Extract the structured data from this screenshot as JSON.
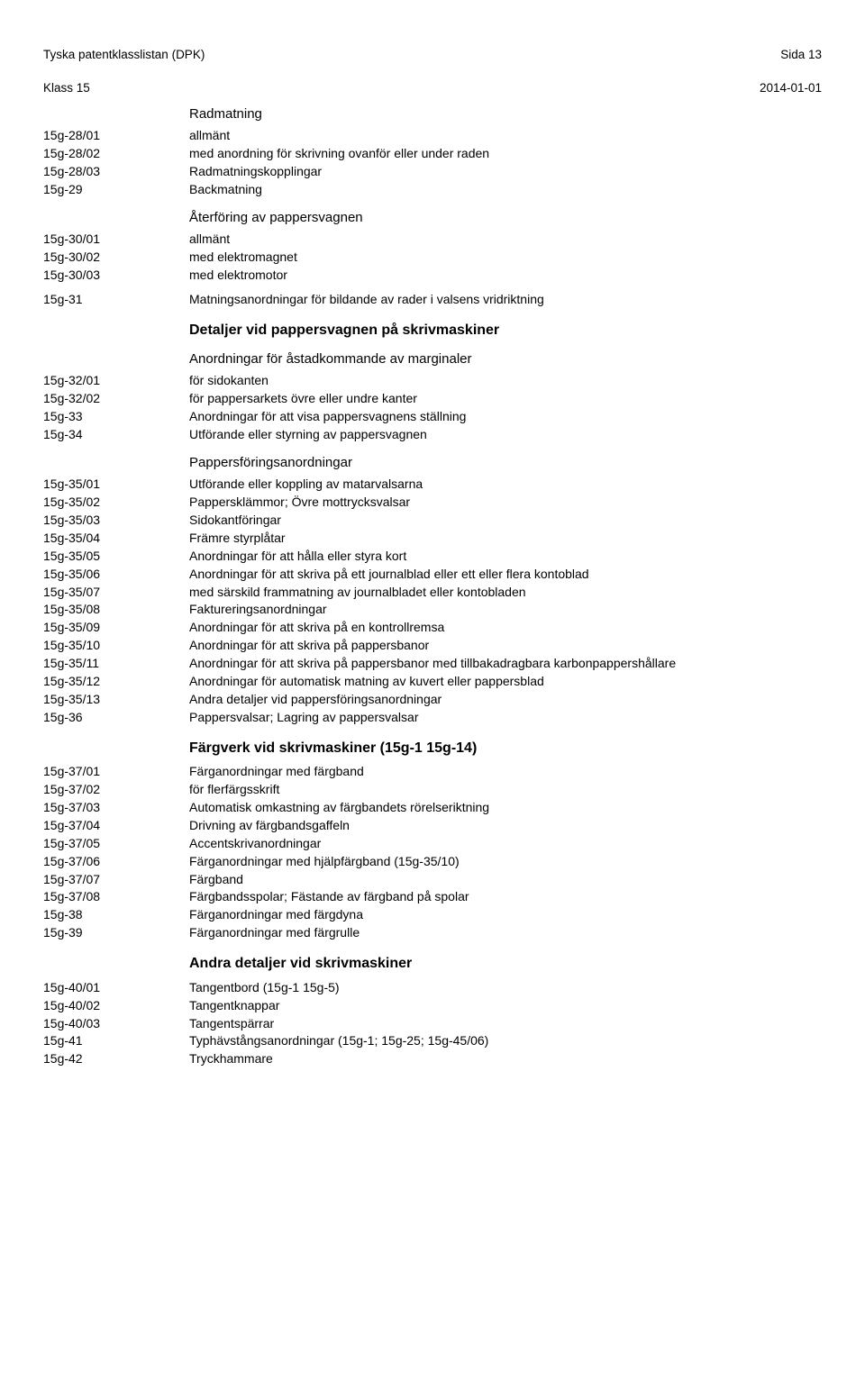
{
  "header": {
    "left_line1": "Tyska patentklasslistan (DPK)",
    "left_line2": "Klass 15",
    "right_line1": "Sida 13",
    "right_line2": "2014-01-01"
  },
  "sections": [
    {
      "type": "subtitle",
      "text": "Radmatning"
    },
    {
      "type": "row",
      "code": "15g-28/01",
      "desc": "allmänt"
    },
    {
      "type": "row",
      "code": "15g-28/02",
      "desc": "med anordning för skrivning ovanför eller under raden"
    },
    {
      "type": "row",
      "code": "15g-28/03",
      "desc": "Radmatningskopplingar"
    },
    {
      "type": "row",
      "code": "15g-29",
      "desc": "Backmatning"
    },
    {
      "type": "subtitle",
      "text": "Återföring av pappersvagnen"
    },
    {
      "type": "row",
      "code": "15g-30/01",
      "desc": "allmänt"
    },
    {
      "type": "row",
      "code": "15g-30/02",
      "desc": "med elektromagnet"
    },
    {
      "type": "row",
      "code": "15g-30/03",
      "desc": "med elektromotor"
    },
    {
      "type": "row",
      "code": "15g-31",
      "desc": "Matningsanordningar för bildande av rader i valsens vridriktning",
      "spacer": true
    },
    {
      "type": "subtitle_bold",
      "text": "Detaljer vid pappersvagnen på skrivmaskiner"
    },
    {
      "type": "subtitle",
      "text": "Anordningar för åstadkommande av marginaler"
    },
    {
      "type": "row",
      "code": "15g-32/01",
      "desc": "för sidokanten"
    },
    {
      "type": "row",
      "code": "15g-32/02",
      "desc": "för pappersarkets övre eller undre kanter"
    },
    {
      "type": "row",
      "code": "15g-33",
      "desc": "Anordningar för att visa pappersvagnens ställning"
    },
    {
      "type": "row",
      "code": "15g-34",
      "desc": "Utförande eller styrning av pappersvagnen"
    },
    {
      "type": "subtitle",
      "text": "Pappersföringsanordningar"
    },
    {
      "type": "row",
      "code": "15g-35/01",
      "desc": "Utförande eller koppling av matarvalsarna"
    },
    {
      "type": "row",
      "code": "15g-35/02",
      "desc": "Pappersklämmor; Övre mottrycksvalsar"
    },
    {
      "type": "row",
      "code": "15g-35/03",
      "desc": "Sidokantföringar"
    },
    {
      "type": "row",
      "code": "15g-35/04",
      "desc": "Främre styrplåtar"
    },
    {
      "type": "row",
      "code": "15g-35/05",
      "desc": "Anordningar för att hålla eller styra kort"
    },
    {
      "type": "row",
      "code": "15g-35/06",
      "desc": "Anordningar för att skriva på ett journalblad eller ett eller flera kontoblad"
    },
    {
      "type": "row",
      "code": "15g-35/07",
      "desc": "med särskild frammatning av journalbladet eller kontobladen"
    },
    {
      "type": "row",
      "code": "15g-35/08",
      "desc": "Faktureringsanordningar"
    },
    {
      "type": "row",
      "code": "15g-35/09",
      "desc": "Anordningar för att skriva på en kontrollremsa"
    },
    {
      "type": "row",
      "code": "15g-35/10",
      "desc": "Anordningar för att skriva på pappersbanor"
    },
    {
      "type": "row",
      "code": "15g-35/11",
      "desc": "Anordningar för att skriva på pappersbanor med tillbakadragbara karbonpappershållare"
    },
    {
      "type": "row",
      "code": "15g-35/12",
      "desc": "Anordningar för automatisk matning av kuvert eller pappersblad"
    },
    {
      "type": "row",
      "code": "15g-35/13",
      "desc": "Andra detaljer vid pappersföringsanordningar"
    },
    {
      "type": "row",
      "code": "15g-36",
      "desc": "Pappersvalsar; Lagring av pappersvalsar"
    },
    {
      "type": "subtitle_bold",
      "text": "Färgverk vid skrivmaskiner (15g-1 15g-14)"
    },
    {
      "type": "row",
      "code": "15g-37/01",
      "desc": "Färganordningar med färgband"
    },
    {
      "type": "row",
      "code": "15g-37/02",
      "desc": "för flerfärgsskrift"
    },
    {
      "type": "row",
      "code": "15g-37/03",
      "desc": "Automatisk omkastning av färgbandets rörelseriktning"
    },
    {
      "type": "row",
      "code": "15g-37/04",
      "desc": "Drivning av färgbandsgaffeln"
    },
    {
      "type": "row",
      "code": "15g-37/05",
      "desc": "Accentskrivanordningar"
    },
    {
      "type": "row",
      "code": "15g-37/06",
      "desc": "Färganordningar med hjälpfärgband (15g-35/10)"
    },
    {
      "type": "row",
      "code": "15g-37/07",
      "desc": "Färgband"
    },
    {
      "type": "row",
      "code": "15g-37/08",
      "desc": "Färgbandsspolar; Fästande av färgband på spolar"
    },
    {
      "type": "row",
      "code": "15g-38",
      "desc": "Färganordningar med färgdyna"
    },
    {
      "type": "row",
      "code": "15g-39",
      "desc": "Färganordningar med färgrulle"
    },
    {
      "type": "subtitle_bold",
      "text": "Andra detaljer vid skrivmaskiner"
    },
    {
      "type": "row",
      "code": "15g-40/01",
      "desc": "Tangentbord (15g-1 15g-5)"
    },
    {
      "type": "row",
      "code": "15g-40/02",
      "desc": "Tangentknappar"
    },
    {
      "type": "row",
      "code": "15g-40/03",
      "desc": "Tangentspärrar"
    },
    {
      "type": "row",
      "code": "15g-41",
      "desc": "Typhävstångsanordningar (15g-1; 15g-25; 15g-45/06)"
    },
    {
      "type": "row",
      "code": "15g-42",
      "desc": "Tryckhammare"
    }
  ]
}
